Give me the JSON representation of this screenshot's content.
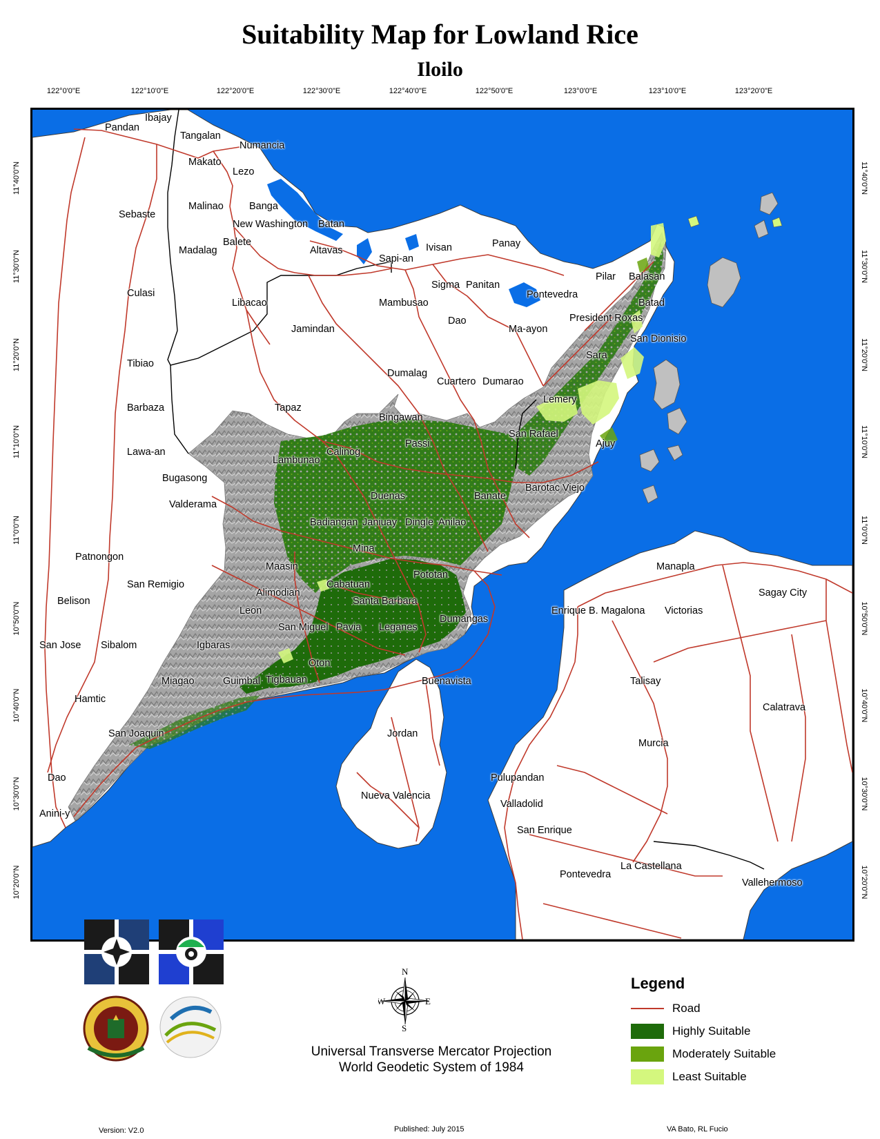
{
  "title": "Suitability Map for Lowland Rice",
  "subtitle": "Iloilo",
  "graticule": {
    "longitudes": [
      "122°0'0\"E",
      "122°10'0\"E",
      "122°20'0\"E",
      "122°30'0\"E",
      "122°40'0\"E",
      "122°50'0\"E",
      "123°0'0\"E",
      "123°10'0\"E",
      "123°20'0\"E"
    ],
    "latitudes": [
      "11°40'0\"N",
      "11°30'0\"N",
      "11°20'0\"N",
      "11°10'0\"N",
      "11°0'0\"N",
      "10°50'0\"N",
      "10°40'0\"N",
      "10°30'0\"N",
      "10°20'0\"N"
    ]
  },
  "places": [
    "Ibajay",
    "Pandan",
    "Tangalan",
    "Numancia",
    "Makato",
    "Lezo",
    "Malinao",
    "Banga",
    "Sebaste",
    "New Washington",
    "Batan",
    "Balete",
    "Madalag",
    "Altavas",
    "Ivisan",
    "Panay",
    "Sapi-an",
    "Culasi",
    "Libacao",
    "Mambusao",
    "Sigma",
    "Panitan",
    "Pontevedra",
    "Pilar",
    "Balasan",
    "Batad",
    "Dao",
    "Ma-ayon",
    "President Roxas",
    "Jamindan",
    "San Dionisio",
    "Sara",
    "Tibiao",
    "Dumalag",
    "Cuartero",
    "Dumarao",
    "Lemery",
    "Barbaza",
    "Tapaz",
    "Bingawan",
    "Passi",
    "San Rafael",
    "Ajuy",
    "Lawa-an",
    "Calinog",
    "Lambunao",
    "Bugasong",
    "Duenas",
    "Banate",
    "Barotac Viejo",
    "Valderama",
    "Badiangan",
    "Janiuay",
    "Dingle",
    "Anilao",
    "Mina",
    "Patnongon",
    "Maasin",
    "Pototan",
    "Manapla",
    "Cabatuan",
    "San Remigio",
    "Alimodian",
    "Santa Barbara",
    "Sagay City",
    "Belison",
    "Leon",
    "Dumangas",
    "Enrique B. Magalona",
    "Victorias",
    "San Miguel",
    "Pavia",
    "Leganes",
    "San Jose",
    "Sibalom",
    "Igbaras",
    "Oton",
    "Miagao",
    "Guimbal",
    "Tigbauan",
    "Buenavista",
    "Talisay",
    "Hamtic",
    "Calatrava",
    "San Joaquin",
    "Jordan",
    "Murcia",
    "Dao",
    "Pulupandan",
    "Nueva Valencia",
    "Valladolid",
    "Anini-y",
    "San Enrique",
    "La Castellana",
    "Pontevedra",
    "Vallehermoso"
  ],
  "legend": {
    "title": "Legend",
    "items": [
      {
        "label": "Road",
        "kind": "line",
        "color": "#c0392b"
      },
      {
        "label": "Highly Suitable",
        "kind": "fill",
        "color": "#1e6b0a"
      },
      {
        "label": "Moderately Suitable",
        "kind": "fill",
        "color": "#6aa40e"
      },
      {
        "label": "Least Suitable",
        "kind": "fill",
        "color": "#d4f77e"
      }
    ]
  },
  "compass": {
    "n": "N",
    "s": "S",
    "e": "E",
    "w": "W"
  },
  "projection": {
    "line1": "Universal Transverse Mercator Projection",
    "line2": "World Geodetic System of 1984"
  },
  "footer": {
    "version": "Version: V2.0",
    "published": "Published: July 2015",
    "authors": "VA Bato, RL Fucio"
  },
  "colors": {
    "sea": "#0a6ee6",
    "land": "#ffffff",
    "terrain": "#a8a8a8",
    "road": "#c0392b",
    "boundary": "#000000"
  }
}
